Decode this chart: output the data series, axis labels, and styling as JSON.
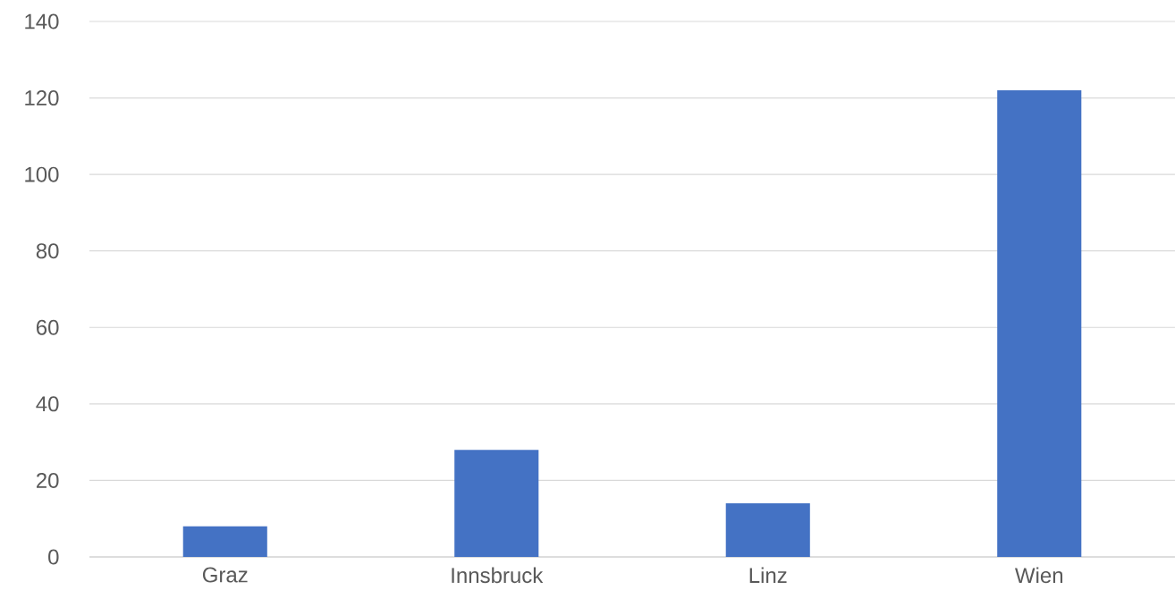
{
  "chart_data": {
    "type": "bar",
    "categories": [
      "Graz",
      "Innsbruck",
      "Linz",
      "Wien"
    ],
    "values": [
      8,
      28,
      14,
      122
    ],
    "color": "#4472c4",
    "ylim": [
      0,
      140
    ],
    "yticks": [
      0,
      20,
      40,
      60,
      80,
      100,
      120,
      140
    ],
    "grid": "y"
  }
}
